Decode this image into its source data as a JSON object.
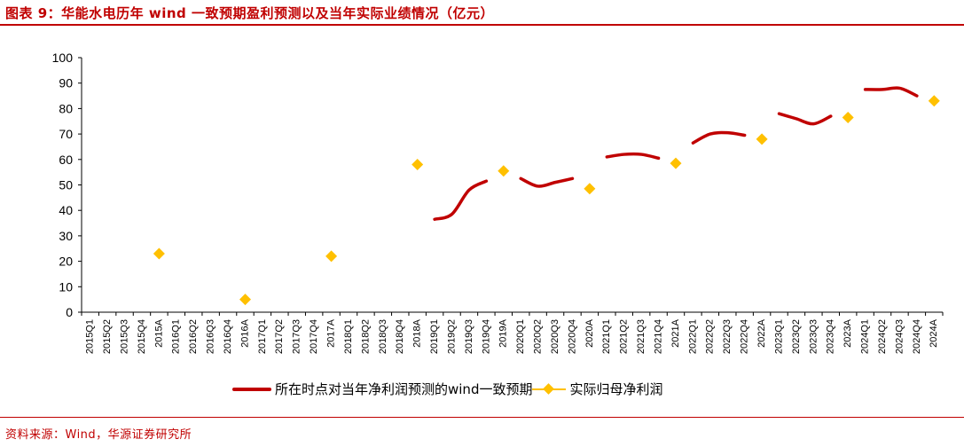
{
  "header": {
    "title": "图表 9：华能水电历年 wind 一致预期盈利预测以及当年实际业绩情况（亿元）"
  },
  "footer": {
    "source": "资料来源：Wind，华源证券研究所"
  },
  "colors": {
    "accent": "#c00000",
    "forecast_line": "#c00000",
    "actual_marker": "#ffc000",
    "axis": "#000000"
  },
  "chart_data": {
    "type": "line",
    "title": "图表 9：华能水电历年 wind 一致预期盈利预测以及当年实际业绩情况（亿元）",
    "xlabel": "",
    "ylabel": "",
    "ylim": [
      0,
      100
    ],
    "yticks": [
      0,
      10,
      20,
      30,
      40,
      50,
      60,
      70,
      80,
      90,
      100
    ],
    "grid": false,
    "legend_position": "bottom",
    "categories": [
      "2015Q1",
      "2015Q2",
      "2015Q3",
      "2015Q4",
      "2015A",
      "2016Q1",
      "2016Q2",
      "2016Q3",
      "2016Q4",
      "2016A",
      "2017Q1",
      "2017Q2",
      "2017Q3",
      "2017Q4",
      "2017A",
      "2018Q1",
      "2018Q2",
      "2018Q3",
      "2018Q4",
      "2018A",
      "2019Q1",
      "2019Q2",
      "2019Q3",
      "2019Q4",
      "2019A",
      "2020Q1",
      "2020Q2",
      "2020Q3",
      "2020Q4",
      "2020A",
      "2021Q1",
      "2021Q2",
      "2021Q3",
      "2021Q4",
      "2021A",
      "2022Q1",
      "2022Q2",
      "2022Q3",
      "2022Q4",
      "2022A",
      "2023Q1",
      "2023Q2",
      "2023Q3",
      "2023Q4",
      "2023A",
      "2024Q1",
      "2024Q2",
      "2024Q3",
      "2024Q4",
      "2024A"
    ],
    "series": [
      {
        "name": "所在时点对当年净利润预测的wind一致预期",
        "kind": "line",
        "color": "#c00000",
        "values": [
          null,
          null,
          null,
          null,
          null,
          null,
          null,
          null,
          null,
          null,
          null,
          null,
          null,
          null,
          null,
          null,
          null,
          null,
          null,
          null,
          36.5,
          38.5,
          48,
          51.5,
          null,
          52.5,
          49.5,
          51,
          52.5,
          null,
          61,
          62,
          62,
          60.5,
          null,
          66.5,
          70,
          70.5,
          69.5,
          null,
          78,
          76,
          74,
          77,
          null,
          87.5,
          87.5,
          88,
          85,
          null
        ]
      },
      {
        "name": "实际归母净利润",
        "kind": "marker",
        "color": "#ffc000",
        "values": [
          null,
          null,
          null,
          null,
          23,
          null,
          null,
          null,
          null,
          5,
          null,
          null,
          null,
          null,
          22,
          null,
          null,
          null,
          null,
          58,
          null,
          null,
          null,
          null,
          55.5,
          null,
          null,
          null,
          null,
          48.5,
          null,
          null,
          null,
          null,
          58.5,
          null,
          null,
          null,
          null,
          68,
          null,
          null,
          null,
          null,
          76.5,
          null,
          null,
          null,
          null,
          83
        ]
      }
    ]
  }
}
